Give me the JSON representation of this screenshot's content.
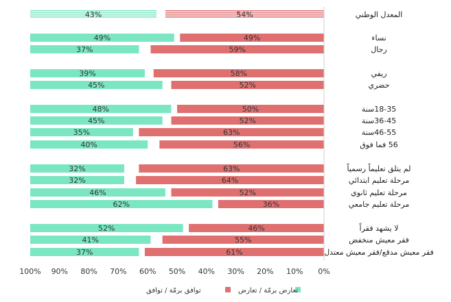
{
  "chart_data": {
    "type": "bar",
    "orientation": "horizontal-diverging",
    "xlim": [
      0,
      100
    ],
    "x_ticks": [
      "100%",
      "90%",
      "80%",
      "70%",
      "60%",
      "50%",
      "40%",
      "30%",
      "20%",
      "10%",
      "0%"
    ],
    "legend": {
      "position": "bottom",
      "entries": [
        {
          "label": "تعارض برمّة / تعارض",
          "color": "#7ae6c2"
        },
        {
          "label": "توافق برمّة / توافق",
          "color": "#e07070"
        }
      ]
    },
    "colors": {
      "agree": "#e07070",
      "disagree": "#7ae6c2"
    },
    "groups": [
      {
        "rows": [
          {
            "label": "المعدل الوطني",
            "agree": 54,
            "disagree": 43,
            "agree_label": "54%",
            "disagree_label": "43%",
            "striped": true
          }
        ]
      },
      {
        "rows": [
          {
            "label": "نساء",
            "agree": 49,
            "disagree": 49,
            "agree_label": "49%",
            "disagree_label": "49%"
          },
          {
            "label": "رجال",
            "agree": 59,
            "disagree": 37,
            "agree_label": "59%",
            "disagree_label": "37%"
          }
        ]
      },
      {
        "rows": [
          {
            "label": "ريفي",
            "agree": 58,
            "disagree": 39,
            "agree_label": "58%",
            "disagree_label": "39%"
          },
          {
            "label": "حضري",
            "agree": 52,
            "disagree": 45,
            "agree_label": "52%",
            "disagree_label": "45%"
          }
        ]
      },
      {
        "rows": [
          {
            "label": "18-35سنة",
            "agree": 50,
            "disagree": 48,
            "agree_label": "50%",
            "disagree_label": "48%"
          },
          {
            "label": "36-45سنة",
            "agree": 52,
            "disagree": 45,
            "agree_label": "52%",
            "disagree_label": "45%"
          },
          {
            "label": "46-55سنة",
            "agree": 63,
            "disagree": 35,
            "agree_label": "63%",
            "disagree_label": "35%"
          },
          {
            "label": "56 فما فوق",
            "agree": 56,
            "disagree": 40,
            "agree_label": "56%",
            "disagree_label": "40%"
          }
        ]
      },
      {
        "rows": [
          {
            "label": "لم يتلق تعليماً رسمياً",
            "agree": 63,
            "disagree": 32,
            "agree_label": "63%",
            "disagree_label": "32%"
          },
          {
            "label": "مرحلة تعليم ابتدائي",
            "agree": 64,
            "disagree": 32,
            "agree_label": "64%",
            "disagree_label": "32%"
          },
          {
            "label": "مرحلة تعليم ثانوي",
            "agree": 52,
            "disagree": 46,
            "agree_label": "52%",
            "disagree_label": "46%"
          },
          {
            "label": "مرحلة تعليم جامعي",
            "agree": 36,
            "disagree": 62,
            "agree_label": "36%",
            "disagree_label": "62%"
          }
        ]
      },
      {
        "rows": [
          {
            "label": "لا يشهد فقراً",
            "agree": 46,
            "disagree": 52,
            "agree_label": "46%",
            "disagree_label": "52%"
          },
          {
            "label": "فقر معيش منخفض",
            "agree": 55,
            "disagree": 41,
            "agree_label": "55%",
            "disagree_label": "41%"
          },
          {
            "label": "فقر معيش مدقع/فقر معيش معتدل",
            "agree": 61,
            "disagree": 37,
            "agree_label": "61%",
            "disagree_label": "37%"
          }
        ]
      }
    ]
  }
}
